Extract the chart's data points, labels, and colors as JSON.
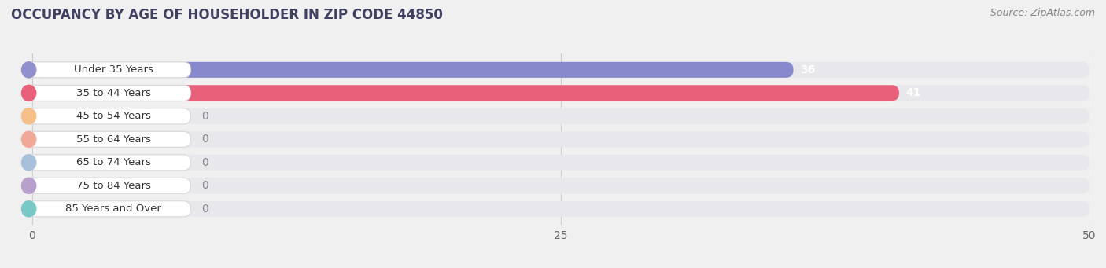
{
  "title": "OCCUPANCY BY AGE OF HOUSEHOLDER IN ZIP CODE 44850",
  "source": "Source: ZipAtlas.com",
  "categories": [
    "Under 35 Years",
    "35 to 44 Years",
    "45 to 54 Years",
    "55 to 64 Years",
    "65 to 74 Years",
    "75 to 84 Years",
    "85 Years and Over"
  ],
  "values": [
    36,
    41,
    0,
    0,
    0,
    0,
    0
  ],
  "bar_colors": [
    "#8888cc",
    "#e8607a",
    "#f5c08a",
    "#f0a898",
    "#a8c0dc",
    "#b8a0cc",
    "#78c8c8"
  ],
  "label_bg_colors": [
    "#9090cc",
    "#e8607a",
    "#f5c08a",
    "#f0a898",
    "#a8c0dc",
    "#b8a0cc",
    "#78c8c8"
  ],
  "xlim_data": [
    0,
    50
  ],
  "xticks": [
    0,
    25,
    50
  ],
  "background_color": "#f0f0f0",
  "bar_bg_color": "#e8e8ec",
  "title_fontsize": 12,
  "source_fontsize": 9,
  "bar_label_fontsize": 10,
  "tick_fontsize": 10,
  "category_fontsize": 9.5
}
